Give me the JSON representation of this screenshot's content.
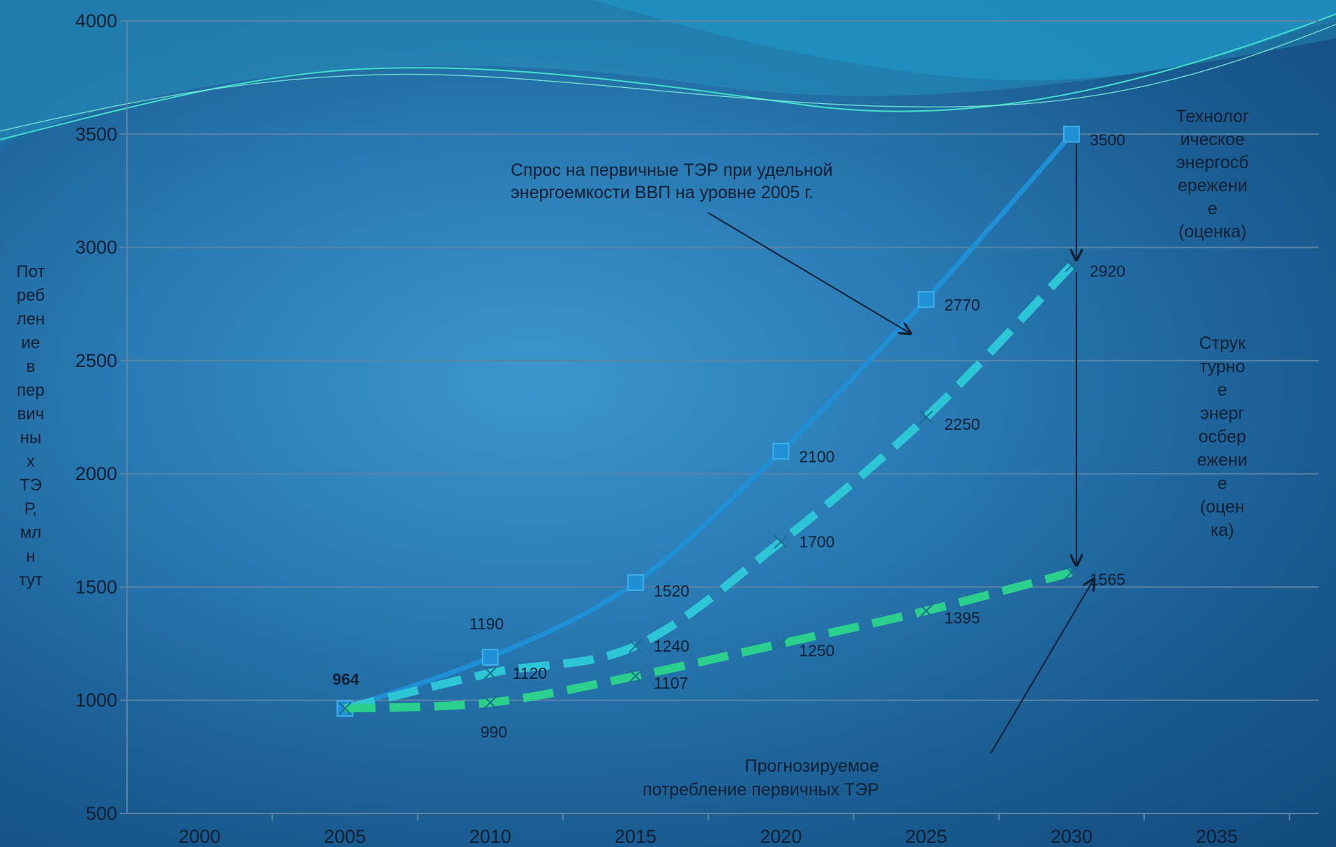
{
  "chart_data": {
    "type": "line",
    "title": "",
    "ylabel_lines": [
      "Пот",
      "реб",
      "лен",
      "ие",
      "в",
      "пер",
      "вич",
      "ны",
      "х",
      "ТЭ",
      "Р,",
      "мл",
      "н",
      "тут"
    ],
    "xlabel": "",
    "xlim": [
      1997.5,
      2038.5
    ],
    "ylim": [
      500,
      4000
    ],
    "x_ticks": [
      "2000",
      "2005",
      "2010",
      "2015",
      "2020",
      "2025",
      "2030",
      "2035"
    ],
    "y_ticks": [
      "4000",
      "3500",
      "3000",
      "2500",
      "2000",
      "1500",
      "1000",
      "500"
    ],
    "grid": true,
    "legend": "none",
    "series": [
      {
        "key": "demand_2005",
        "style": "solid",
        "color": "#1f8fd6",
        "x": [
          2005,
          2010,
          2015,
          2020,
          2025,
          2030
        ],
        "y": [
          964,
          1190,
          1520,
          2100,
          2770,
          3500
        ],
        "labels": [
          "964",
          "1190",
          "1520",
          "2100",
          "2770",
          "3500"
        ]
      },
      {
        "key": "tech_saving",
        "style": "dashed",
        "color": "#2cc6d6",
        "x": [
          2005,
          2010,
          2015,
          2020,
          2025,
          2030
        ],
        "y": [
          964,
          1120,
          1240,
          1700,
          2250,
          2920
        ],
        "labels": [
          "",
          "1120",
          "1240",
          "1700",
          "2250",
          "2920"
        ]
      },
      {
        "key": "forecast",
        "style": "dashed",
        "color": "#2bd08c",
        "x": [
          2005,
          2010,
          2015,
          2020,
          2025,
          2030
        ],
        "y": [
          964,
          990,
          1107,
          1250,
          1395,
          1565
        ],
        "labels": [
          "",
          "990",
          "1107",
          "1250",
          "1395",
          "1565"
        ]
      }
    ],
    "annotations": {
      "demand_note": [
        "Спрос на первичные ТЭР при удельной",
        "энергоемкости ВВП на уровне 2005 г."
      ],
      "forecast_note": [
        "Прогнозируемое",
        "потребление первичных ТЭР"
      ],
      "tech_saving_note": [
        "Технолог",
        "ическое",
        "энергосб",
        "ережени",
        "е",
        "(оценка)"
      ],
      "struct_saving_note": [
        "Струк",
        "турно",
        "е",
        "энерг",
        "осбер",
        "ежени",
        "е",
        "(оцен",
        "ка)"
      ]
    }
  }
}
